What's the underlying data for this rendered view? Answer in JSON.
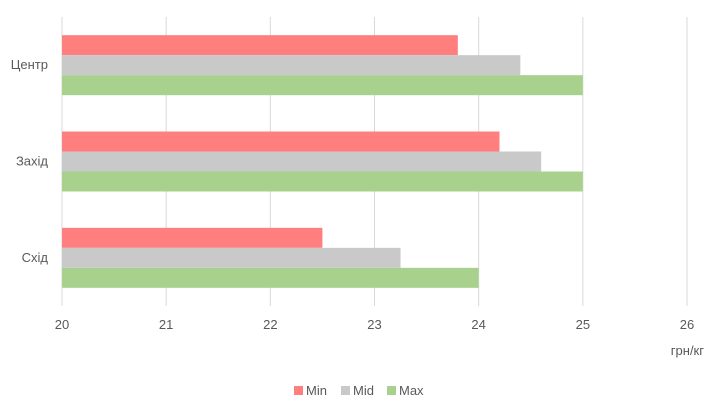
{
  "chart_data": {
    "type": "bar",
    "orientation": "horizontal",
    "categories": [
      "Центр",
      "Захід",
      "Схід"
    ],
    "series": [
      {
        "name": "Min",
        "color": "#ff7f7f",
        "values": [
          23.8,
          24.2,
          22.5
        ]
      },
      {
        "name": "Mid",
        "color": "#c9c9c9",
        "values": [
          24.4,
          24.6,
          23.25
        ]
      },
      {
        "name": "Max",
        "color": "#a9d18e",
        "values": [
          25.0,
          25.0,
          24.0
        ]
      }
    ],
    "xlim": [
      20,
      26
    ],
    "xticks": [
      "20",
      "21",
      "22",
      "23",
      "24",
      "25",
      "26"
    ],
    "xlabel": "грн/кг",
    "grid": "vertical",
    "legend_position": "bottom"
  }
}
